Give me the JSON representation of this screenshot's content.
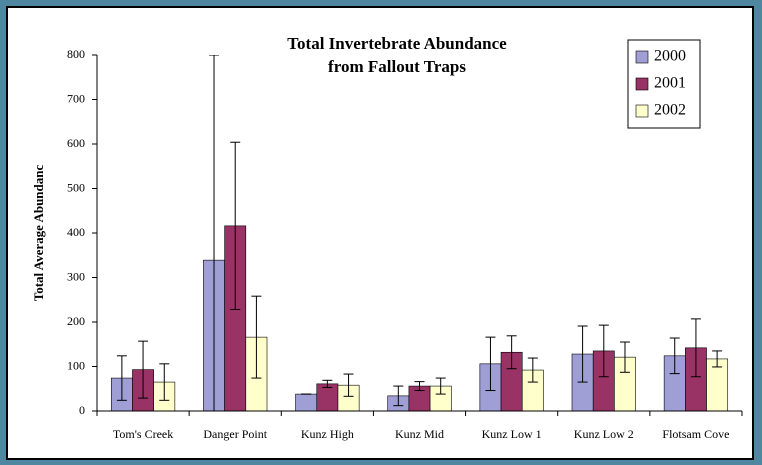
{
  "chart_data": {
    "type": "bar",
    "title": "Total Invertebrate Abundance",
    "subtitle": "from Fallout Traps",
    "y_label": "Total Average Abundanc",
    "categories": [
      "Tom's Creek",
      "Danger Point",
      "Kunz High",
      "Kunz Mid",
      "Kunz Low 1",
      "Kunz Low 2",
      "Flotsam Cove"
    ],
    "series": [
      {
        "name": "2000",
        "color": "#9f9fd6",
        "values": [
          74,
          339,
          38,
          34,
          106,
          128,
          124
        ],
        "errors": [
          50,
          461,
          0,
          22,
          60,
          63,
          40
        ]
      },
      {
        "name": "2001",
        "color": "#993366",
        "values": [
          93,
          416,
          61,
          56,
          132,
          135,
          142
        ],
        "errors": [
          64,
          188,
          8,
          10,
          37,
          58,
          65
        ]
      },
      {
        "name": "2002",
        "color": "#ffffcc",
        "values": [
          65,
          166,
          58,
          56,
          92,
          121,
          117
        ],
        "errors": [
          41,
          92,
          25,
          18,
          27,
          34,
          18
        ]
      }
    ],
    "ylim": [
      0,
      800
    ],
    "yticks": [
      0,
      100,
      200,
      300,
      400,
      500,
      600,
      700,
      800
    ],
    "grid": false,
    "legend": "top-right"
  }
}
